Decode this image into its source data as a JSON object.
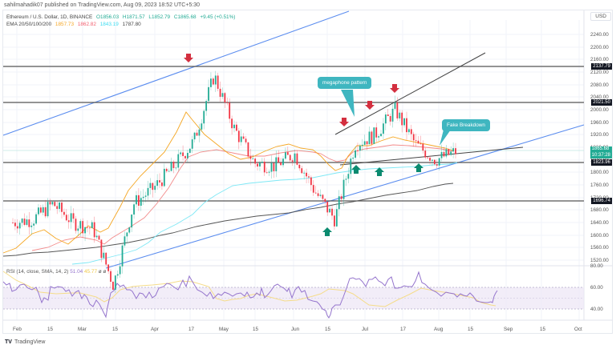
{
  "publish_line": "sahilmahadik07 published on TradingView.com, Aug 09, 2023 18:52 UTC+5:30",
  "symbol": {
    "title": "Ethereum / U.S. Dollar, 1D, BINANCE",
    "open": "O1856.03",
    "high": "H1871.57",
    "low": "L1852.79",
    "close": "C1865.68",
    "change": "+9.45 (+0.51%)"
  },
  "ema": {
    "label": "EMA 20/50/100/200",
    "ema20": "1857.73",
    "ema50": "1862.82",
    "ema100": "1843.19",
    "ema200": "1787.80"
  },
  "price_axis": {
    "currency": "USD",
    "ticks": [
      "2240.00",
      "2200.00",
      "2160.00",
      "2120.00",
      "2080.00",
      "2040.00",
      "2000.00",
      "1960.00",
      "1920.00",
      "1880.00",
      "1840.00",
      "1800.00",
      "1760.00",
      "1720.00",
      "1680.00",
      "1640.00",
      "1600.00",
      "1560.00",
      "1520.00",
      "80.00"
    ],
    "level_tags": [
      "2137.79",
      "2021.50",
      "1823.96",
      "1696.74"
    ],
    "current_price": "1865.68",
    "countdown": "10:37:28"
  },
  "annotations": {
    "megaphone": "megaphone pattern",
    "fake_breakdown": "Fake Breakdown"
  },
  "rsi": {
    "label": "RSI (14, close, SMA, 14, 2)",
    "value": "51.04",
    "sma": "45.77",
    "extra": "ø ø",
    "ticks": [
      "60.00",
      "40.00"
    ]
  },
  "time_axis": [
    "Feb",
    "15",
    "Mar",
    "15",
    "Apr",
    "17",
    "May",
    "15",
    "Jun",
    "15",
    "Jul",
    "17",
    "Aug",
    "15",
    "Sep",
    "15",
    "Oct"
  ],
  "brand": "TradingView",
  "colors": {
    "up": "#22ab94",
    "down": "#f23645",
    "ema20": "#f5a623",
    "ema50": "#f28b8b",
    "ema100": "#7fe8f5",
    "ema200": "#555555",
    "channel": "#5b8def",
    "rsi_line": "#9575cd",
    "rsi_sma": "#f5dc8a",
    "callout": "#3fb6c0"
  },
  "chart_data": {
    "type": "candlestick",
    "title": "Ethereum / U.S. Dollar, 1D, BINANCE",
    "xlabel": "",
    "ylabel": "USD",
    "ylim": [
      1480,
      2280
    ],
    "x_ticks": [
      "Feb",
      "15",
      "Mar",
      "15",
      "Apr",
      "17",
      "May",
      "15",
      "Jun",
      "15",
      "Jul",
      "17",
      "Aug",
      "15",
      "Sep",
      "15",
      "Oct"
    ],
    "ohlc_last": {
      "open": 1856.03,
      "high": 1871.57,
      "low": 1852.79,
      "close": 1865.68,
      "change": 9.45,
      "change_pct": 0.51
    },
    "horizontal_levels": [
      2137.79,
      2021.5,
      1823.96,
      1696.74
    ],
    "approx_closes": [
      {
        "date": "Feb 01",
        "close": 1640
      },
      {
        "date": "Feb 08",
        "close": 1650
      },
      {
        "date": "Feb 15",
        "close": 1700
      },
      {
        "date": "Feb 22",
        "close": 1640
      },
      {
        "date": "Mar 01",
        "close": 1620
      },
      {
        "date": "Mar 09",
        "close": 1440
      },
      {
        "date": "Mar 15",
        "close": 1700
      },
      {
        "date": "Mar 22",
        "close": 1750
      },
      {
        "date": "Apr 01",
        "close": 1820
      },
      {
        "date": "Apr 10",
        "close": 1900
      },
      {
        "date": "Apr 15",
        "close": 2110
      },
      {
        "date": "Apr 19",
        "close": 1940
      },
      {
        "date": "May 01",
        "close": 1830
      },
      {
        "date": "May 15",
        "close": 1820
      },
      {
        "date": "Jun 01",
        "close": 1860
      },
      {
        "date": "Jun 10",
        "close": 1740
      },
      {
        "date": "Jun 15",
        "close": 1650
      },
      {
        "date": "Jun 21",
        "close": 1890
      },
      {
        "date": "Jul 01",
        "close": 1920
      },
      {
        "date": "Jul 13",
        "close": 2000
      },
      {
        "date": "Jul 20",
        "close": 1890
      },
      {
        "date": "Aug 01",
        "close": 1840
      },
      {
        "date": "Aug 09",
        "close": 1865.68
      }
    ],
    "series": [
      {
        "name": "EMA 20",
        "last": 1857.73
      },
      {
        "name": "EMA 50",
        "last": 1862.82
      },
      {
        "name": "EMA 100",
        "last": 1843.19
      },
      {
        "name": "EMA 200",
        "last": 1787.8
      }
    ],
    "annotations": [
      "megaphone pattern",
      "Fake Breakdown"
    ],
    "sub_chart": {
      "type": "line",
      "title": "RSI (14, close, SMA, 14, 2)",
      "rsi_last": 51.04,
      "sma_last": 45.77,
      "bands": [
        40,
        60
      ]
    },
    "grid": true
  }
}
